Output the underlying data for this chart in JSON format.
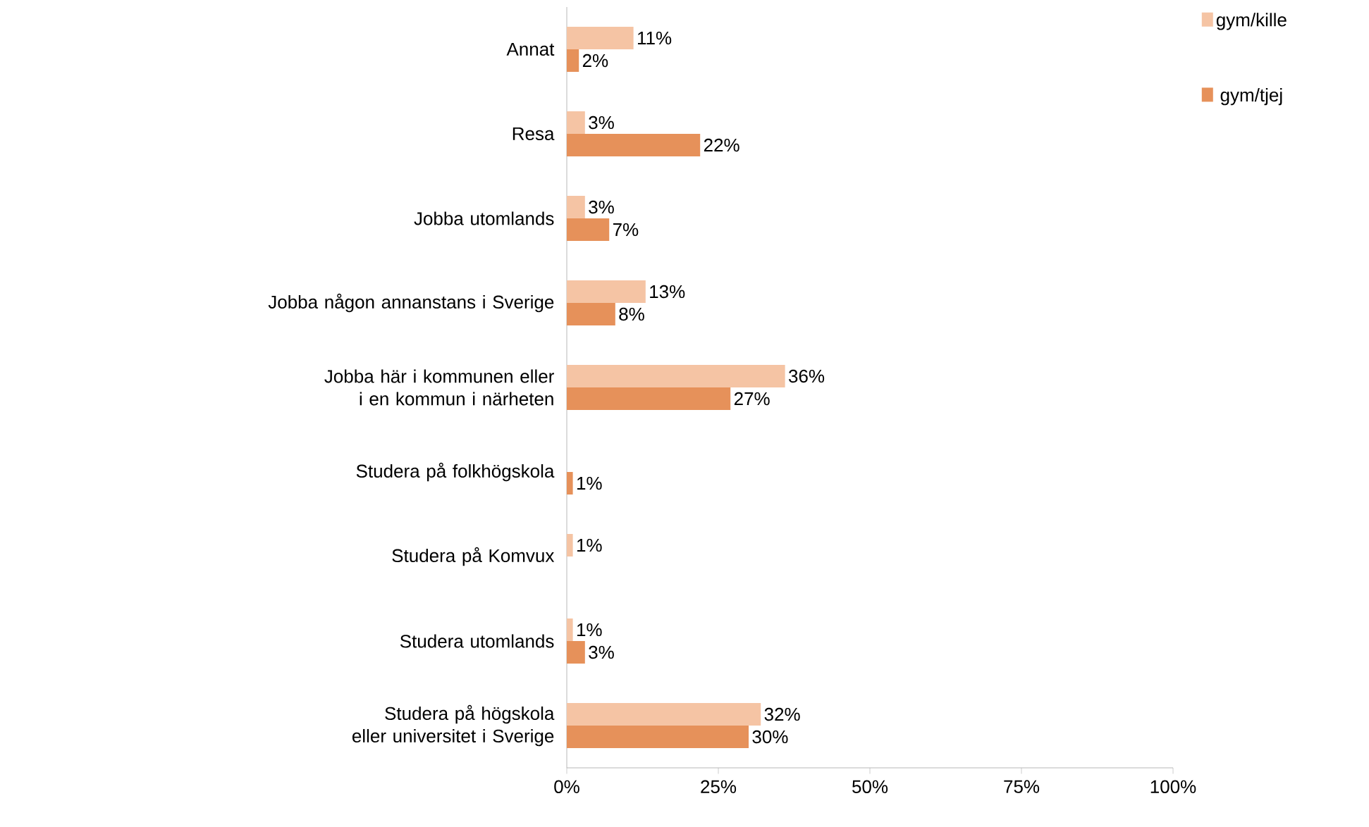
{
  "chart_data": {
    "type": "bar",
    "orientation": "horizontal",
    "categories": [
      "Annat",
      "Resa",
      "Jobba utomlands",
      "Jobba någon annanstans i Sverige",
      "Jobba här i kommunen eller i en kommun i närheten",
      "Studera på folkhögskola",
      "Studera på Komvux",
      "Studera utomlands",
      "Studera på högskola eller universitet i Sverige"
    ],
    "series": [
      {
        "name": "gym/kille",
        "color": "#f5c4a4",
        "values": [
          11,
          3,
          3,
          13,
          36,
          null,
          1,
          1,
          32
        ],
        "value_labels": [
          "11%",
          "3%",
          "3%",
          "13%",
          "36%",
          null,
          "1%",
          "1%",
          "32%"
        ]
      },
      {
        "name": "gym/tjej",
        "color": "#e6915a",
        "values": [
          2,
          22,
          7,
          8,
          27,
          1,
          null,
          3,
          30
        ],
        "value_labels": [
          "2%",
          "22%",
          "7%",
          "8%",
          "27%",
          "1%",
          null,
          "3%",
          "30%"
        ]
      }
    ],
    "xlim": [
      0,
      100
    ],
    "xticks": [
      {
        "value": 0,
        "label": "0%"
      },
      {
        "value": 25,
        "label": "25%"
      },
      {
        "value": 50,
        "label": "50%"
      },
      {
        "value": 75,
        "label": "75%"
      },
      {
        "value": 100,
        "label": "100%"
      }
    ],
    "legend": "right",
    "grid": false
  }
}
